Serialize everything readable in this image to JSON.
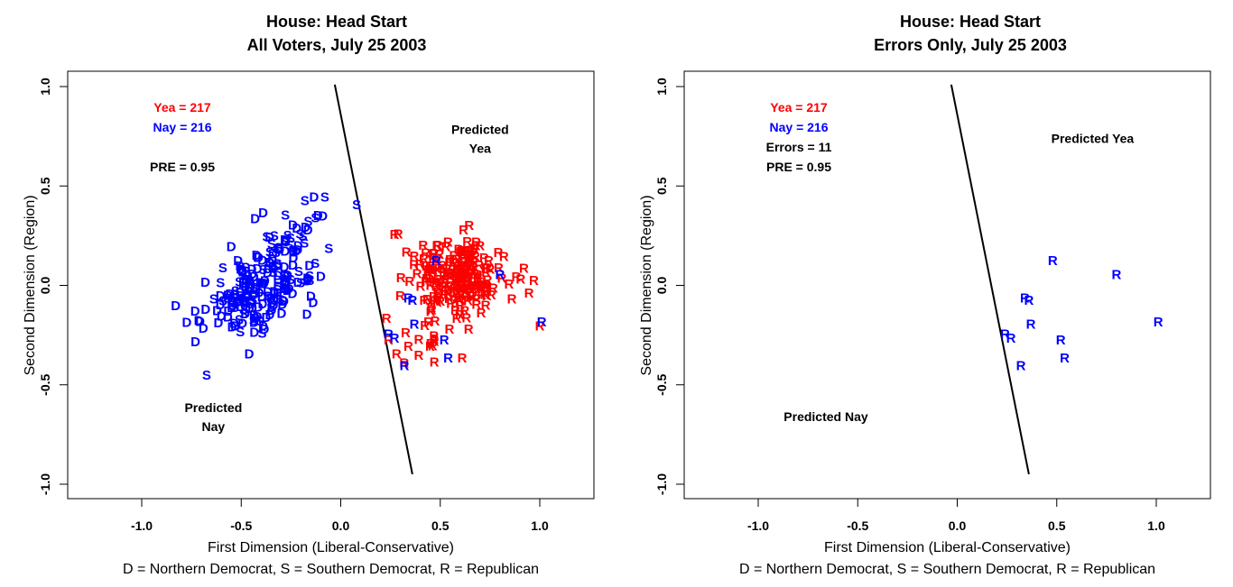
{
  "chart_data": [
    {
      "type": "scatter",
      "title": "House: Head Start",
      "subtitle": "All Voters, July 25 2003",
      "xlabel": "First Dimension (Liberal-Conservative)",
      "ylabel": "Second Dimension (Region)",
      "legend_note": "D = Northern Democrat, S = Southern Democrat, R = Republican",
      "xlim": [
        -1.27,
        1.27
      ],
      "ylim": [
        -1.08,
        1.08
      ],
      "x_ticks": [
        "-1.0",
        "-0.5",
        "0.0",
        "0.5",
        "1.0"
      ],
      "y_ticks": [
        "-1.0",
        "-0.5",
        "0.0",
        "0.5",
        "1.0"
      ],
      "x_tick_values": [
        -1.0,
        -0.5,
        0.0,
        0.5,
        1.0
      ],
      "y_tick_values": [
        -1.0,
        -0.5,
        0.0,
        0.5,
        1.0
      ],
      "grid": false,
      "colors": {
        "yea": "#ff0000",
        "nay": "#0000ff",
        "text": "#000000"
      },
      "stats": [
        {
          "label": "Yea =  217",
          "color": "#ff0000"
        },
        {
          "label": "Nay =  216",
          "color": "#0000ff"
        },
        {
          "label": "PRE =  0.95",
          "color": "#000000"
        }
      ],
      "region_labels": [
        {
          "lines": [
            "Predicted",
            "Yea"
          ],
          "x": 0.7,
          "y": 0.74
        },
        {
          "lines": [
            "Predicted",
            "Nay"
          ],
          "x": -0.64,
          "y": -0.66
        }
      ],
      "cutting_line": {
        "x1": -0.03,
        "y1": 1.01,
        "x2": 0.36,
        "y2": -0.95
      },
      "point_data_source": "estimated: individual legislator coordinates are not readable from the source image (hundreds of overlapping glyphs); the clusters below are described by location, spread and party mix, and the rendered points are a deterministic synthetic approximation of them",
      "clusters": [
        {
          "name": "democrats-main",
          "party_mix": {
            "D": 0.75,
            "S": 0.25
          },
          "color": "#0000ff",
          "n": 170,
          "cx": -0.42,
          "cy": -0.03,
          "sx": 0.13,
          "sy": 0.12,
          "rho": 0.55
        },
        {
          "name": "southern-upper",
          "party_mix": {
            "D": 0.45,
            "S": 0.55
          },
          "color": "#0000ff",
          "n": 30,
          "cx": -0.24,
          "cy": 0.23,
          "sx": 0.09,
          "sy": 0.11,
          "rho": 0.4
        },
        {
          "name": "republicans-yea",
          "party_mix": {
            "R": 1.0
          },
          "color": "#ff0000",
          "n": 200,
          "cx": 0.59,
          "cy": 0.04,
          "sx": 0.12,
          "sy": 0.09,
          "rho": 0.0
        },
        {
          "name": "republicans-lower-yea",
          "party_mix": {
            "R": 1.0
          },
          "color": "#ff0000",
          "n": 17,
          "cx": 0.5,
          "cy": -0.25,
          "sx": 0.12,
          "sy": 0.06,
          "rho": 0.0
        }
      ],
      "fixed_points": [
        {
          "label": "S",
          "x": 0.08,
          "y": 0.41,
          "color": "#0000ff"
        },
        {
          "label": "S",
          "x": -0.18,
          "y": 0.43,
          "color": "#0000ff"
        },
        {
          "label": "S",
          "x": -0.08,
          "y": 0.45,
          "color": "#0000ff"
        },
        {
          "label": "D",
          "x": -0.73,
          "y": -0.28,
          "color": "#0000ff"
        },
        {
          "label": "D",
          "x": -0.46,
          "y": -0.34,
          "color": "#0000ff"
        },
        {
          "label": "D",
          "x": -0.39,
          "y": -0.2,
          "color": "#0000ff"
        },
        {
          "label": "D",
          "x": -0.1,
          "y": 0.05,
          "color": "#0000ff"
        },
        {
          "label": "D",
          "x": -0.15,
          "y": -0.05,
          "color": "#0000ff"
        },
        {
          "label": "D",
          "x": -0.17,
          "y": -0.14,
          "color": "#0000ff"
        },
        {
          "label": "D",
          "x": -0.6,
          "y": -0.15,
          "color": "#0000ff"
        },
        {
          "label": "D",
          "x": -0.69,
          "y": -0.21,
          "color": "#0000ff"
        },
        {
          "label": "D",
          "x": -0.55,
          "y": 0.2,
          "color": "#0000ff"
        },
        {
          "label": "D",
          "x": -0.68,
          "y": 0.02,
          "color": "#0000ff"
        },
        {
          "label": "D",
          "x": -0.43,
          "y": 0.34,
          "color": "#0000ff"
        },
        {
          "label": "D",
          "x": -0.39,
          "y": 0.37,
          "color": "#0000ff"
        },
        {
          "label": "R",
          "x": 0.27,
          "y": 0.26,
          "color": "#ff0000"
        },
        {
          "label": "R",
          "x": 0.67,
          "y": 0.19,
          "color": "#ff0000"
        },
        {
          "label": "R",
          "x": 0.82,
          "y": 0.15,
          "color": "#ff0000"
        },
        {
          "label": "R",
          "x": 0.97,
          "y": 0.03,
          "color": "#ff0000"
        },
        {
          "label": "R",
          "x": 1.0,
          "y": -0.2,
          "color": "#ff0000"
        },
        {
          "label": "R",
          "x": 0.92,
          "y": 0.09,
          "color": "#ff0000"
        },
        {
          "label": "R",
          "x": 0.23,
          "y": -0.16,
          "color": "#ff0000"
        },
        {
          "label": "R",
          "x": 0.47,
          "y": -0.38,
          "color": "#ff0000"
        },
        {
          "label": "R",
          "x": 0.61,
          "y": -0.36,
          "color": "#ff0000"
        },
        {
          "label": "R",
          "x": 0.24,
          "y": -0.27,
          "color": "#ff0000"
        },
        {
          "label": "R",
          "x": 0.28,
          "y": -0.34,
          "color": "#ff0000"
        },
        {
          "label": "R",
          "x": 0.48,
          "y": 0.13,
          "color": "#0000ff"
        },
        {
          "label": "R",
          "x": 0.8,
          "y": 0.06,
          "color": "#0000ff"
        },
        {
          "label": "R",
          "x": 0.34,
          "y": -0.06,
          "color": "#0000ff"
        },
        {
          "label": "R",
          "x": 0.36,
          "y": -0.07,
          "color": "#0000ff"
        },
        {
          "label": "R",
          "x": 0.37,
          "y": -0.19,
          "color": "#0000ff"
        },
        {
          "label": "R",
          "x": 1.01,
          "y": -0.18,
          "color": "#0000ff"
        },
        {
          "label": "R",
          "x": 0.24,
          "y": -0.24,
          "color": "#0000ff"
        },
        {
          "label": "R",
          "x": 0.27,
          "y": -0.26,
          "color": "#0000ff"
        },
        {
          "label": "R",
          "x": 0.52,
          "y": -0.27,
          "color": "#0000ff"
        },
        {
          "label": "R",
          "x": 0.54,
          "y": -0.36,
          "color": "#0000ff"
        },
        {
          "label": "R",
          "x": 0.32,
          "y": -0.4,
          "color": "#0000ff"
        }
      ]
    },
    {
      "type": "scatter",
      "title": "House:  Head Start",
      "subtitle": "Errors Only, July 25 2003",
      "xlabel": "First Dimension (Liberal-Conservative)",
      "ylabel": "Second Dimension (Region)",
      "legend_note": "D = Northern Democrat, S = Southern Democrat, R = Republican",
      "xlim": [
        -1.27,
        1.27
      ],
      "ylim": [
        -1.08,
        1.08
      ],
      "x_ticks": [
        "-1.0",
        "-0.5",
        "0.0",
        "0.5",
        "1.0"
      ],
      "y_ticks": [
        "-1.0",
        "-0.5",
        "0.0",
        "0.5",
        "1.0"
      ],
      "x_tick_values": [
        -1.0,
        -0.5,
        0.0,
        0.5,
        1.0
      ],
      "y_tick_values": [
        -1.0,
        -0.5,
        0.0,
        0.5,
        1.0
      ],
      "grid": false,
      "colors": {
        "yea": "#ff0000",
        "nay": "#0000ff",
        "text": "#000000"
      },
      "stats": [
        {
          "label": "Yea =  217",
          "color": "#ff0000"
        },
        {
          "label": "Nay =  216",
          "color": "#0000ff"
        },
        {
          "label": "Errors =  11",
          "color": "#000000"
        },
        {
          "label": "PRE =  0.95",
          "color": "#000000"
        }
      ],
      "region_labels": [
        {
          "lines": [
            "Predicted Yea"
          ],
          "x": 0.68,
          "y": 0.74
        },
        {
          "lines": [
            "Predicted Nay"
          ],
          "x": -0.66,
          "y": -0.66
        }
      ],
      "cutting_line": {
        "x1": -0.03,
        "y1": 1.01,
        "x2": 0.36,
        "y2": -0.95
      },
      "point_data_source": "read from image",
      "clusters": [],
      "fixed_points": [
        {
          "label": "R",
          "x": 0.48,
          "y": 0.13,
          "color": "#0000ff"
        },
        {
          "label": "R",
          "x": 0.8,
          "y": 0.06,
          "color": "#0000ff"
        },
        {
          "label": "R",
          "x": 0.34,
          "y": -0.06,
          "color": "#0000ff"
        },
        {
          "label": "R",
          "x": 0.36,
          "y": -0.07,
          "color": "#0000ff"
        },
        {
          "label": "R",
          "x": 0.37,
          "y": -0.19,
          "color": "#0000ff"
        },
        {
          "label": "R",
          "x": 1.01,
          "y": -0.18,
          "color": "#0000ff"
        },
        {
          "label": "R",
          "x": 0.24,
          "y": -0.24,
          "color": "#0000ff"
        },
        {
          "label": "R",
          "x": 0.27,
          "y": -0.26,
          "color": "#0000ff"
        },
        {
          "label": "R",
          "x": 0.52,
          "y": -0.27,
          "color": "#0000ff"
        },
        {
          "label": "R",
          "x": 0.54,
          "y": -0.36,
          "color": "#0000ff"
        },
        {
          "label": "R",
          "x": 0.32,
          "y": -0.4,
          "color": "#0000ff"
        }
      ]
    }
  ]
}
